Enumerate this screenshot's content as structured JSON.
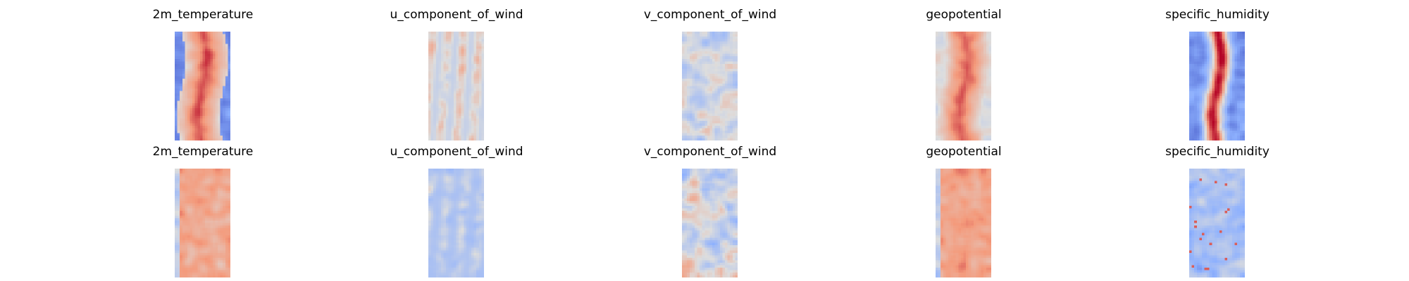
{
  "chart_data": {
    "type": "heatmap",
    "colormap": "coolwarm",
    "axes_visible": false,
    "grid": false,
    "rows": [
      {
        "panels": [
          {
            "title": "2m_temperature",
            "pattern": "warm-band",
            "intensity": 0.85,
            "edge_cold": true
          },
          {
            "title": "u_component_of_wind",
            "pattern": "streaks",
            "intensity": 0.55,
            "edge_cold": false
          },
          {
            "title": "v_component_of_wind",
            "pattern": "noise",
            "intensity": 0.35,
            "edge_cold": false
          },
          {
            "title": "geopotential",
            "pattern": "warm-band",
            "intensity": 0.8,
            "edge_cold": false
          },
          {
            "title": "specific_humidity",
            "pattern": "narrow-band",
            "intensity": 0.95,
            "edge_cold": true
          }
        ]
      },
      {
        "panels": [
          {
            "title": "2m_temperature",
            "pattern": "warm-field",
            "intensity": 0.55,
            "edge_cold": true
          },
          {
            "title": "u_component_of_wind",
            "pattern": "cool-streaks",
            "intensity": 0.5,
            "edge_cold": false
          },
          {
            "title": "v_component_of_wind",
            "pattern": "noise",
            "intensity": 0.45,
            "edge_cold": false
          },
          {
            "title": "geopotential",
            "pattern": "warm-field",
            "intensity": 0.6,
            "edge_cold": true
          },
          {
            "title": "specific_humidity",
            "pattern": "cool-field",
            "intensity": 0.35,
            "edge_cold": false
          }
        ]
      }
    ]
  }
}
